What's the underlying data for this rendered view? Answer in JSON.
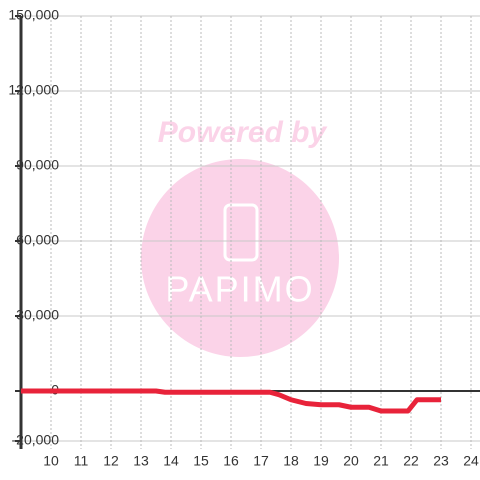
{
  "chart_data": {
    "type": "line",
    "watermark": {
      "text": "Powered by",
      "logo": "PAPIMO"
    },
    "x": [
      9,
      13.5,
      13.8,
      17.3,
      17.6,
      18,
      18.5,
      19,
      19.6,
      20,
      20.6,
      21,
      21.5,
      21.9,
      22.2,
      23
    ],
    "series": [
      {
        "color": "#e8233a",
        "values": [
          0,
          0,
          -500,
          -500,
          -1500,
          -3500,
          -5000,
          -5500,
          -5500,
          -6500,
          -6500,
          -8000,
          -8000,
          -8000,
          -3500,
          -3500
        ]
      }
    ],
    "xlim": [
      9,
      24.3
    ],
    "xticks": [
      10,
      11,
      12,
      13,
      14,
      15,
      16,
      17,
      18,
      19,
      20,
      21,
      22,
      23,
      24
    ],
    "ylim": [
      -20000,
      150000
    ],
    "yticks": [
      {
        "value": -20000,
        "label": "-20,000"
      },
      {
        "value": 0,
        "label": "0"
      },
      {
        "value": 30000,
        "label": "30,000"
      },
      {
        "value": 60000,
        "label": "60,000"
      },
      {
        "value": 90000,
        "label": "90,000"
      },
      {
        "value": 120000,
        "label": "120,000"
      },
      {
        "value": 150000,
        "label": "150,000"
      }
    ],
    "grid": true
  }
}
